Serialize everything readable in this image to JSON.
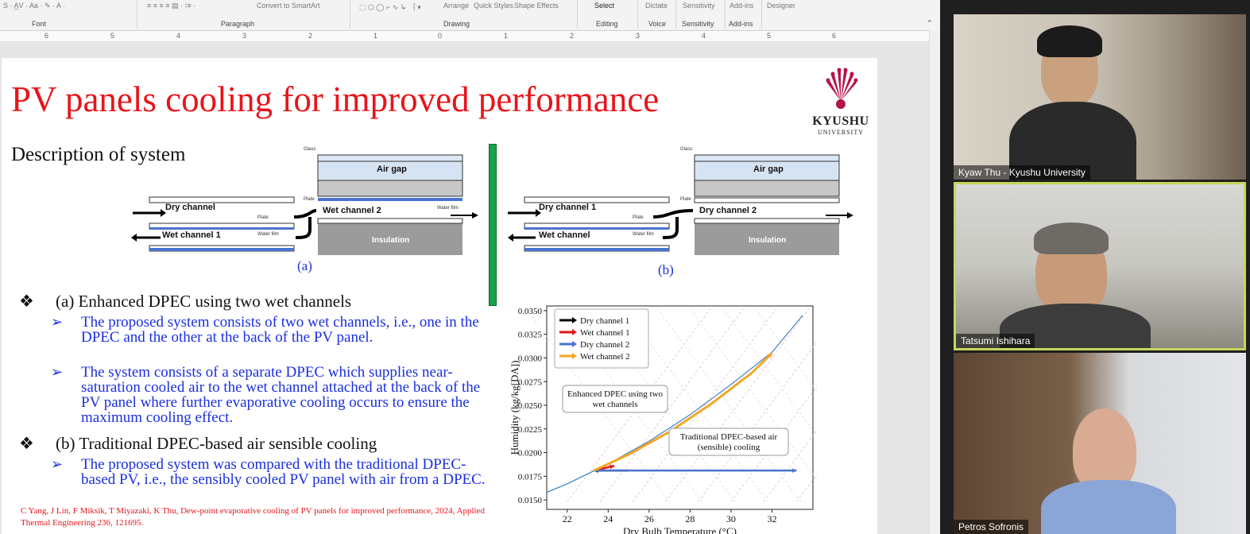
{
  "ribbon": {
    "groups": [
      "Font",
      "Paragraph",
      "Drawing",
      "Editing",
      "Voice",
      "Sensitivity",
      "Add-ins"
    ],
    "controls": [
      "Convert to SmartArt",
      "Arrange",
      "Quick Styles",
      "Shape Effects",
      "Select",
      "Dictate",
      "Sensitivity",
      "Add-ins",
      "Designer"
    ]
  },
  "ruler": [
    "6",
    "5",
    "4",
    "3",
    "2",
    "1",
    "0",
    "1",
    "2",
    "3",
    "4",
    "5",
    "6"
  ],
  "slide": {
    "title": "PV panels cooling for improved performance",
    "logo": {
      "name": "KYUSHU",
      "sub": "UNIVERSITY"
    },
    "section": "Description of system",
    "diagram_a": {
      "glass": "Glass",
      "air_gap": "Air gap",
      "plate": "Plate",
      "dry_channel": "Dry channel",
      "wet_channel_2": "Wet channel 2",
      "plate2": "Plate",
      "wet_channel_1": "Wet channel 1",
      "water_film": "Water film",
      "water_film2": "Water film",
      "insulation": "Insulation",
      "caption": "(a)"
    },
    "diagram_b": {
      "glass": "Glass",
      "air_gap": "Air gap",
      "plate": "Plate",
      "dry_channel_1": "Dry channel 1",
      "dry_channel_2": "Dry channel 2",
      "plate2": "Plate",
      "wet_channel": "Wet channel",
      "water_film": "Water film",
      "insulation": "Insulation",
      "caption": "(b)"
    },
    "bullet_a": "(a) Enhanced DPEC using two wet channels",
    "sub_a1": "The proposed system consists of two wet channels, i.e., one in the DPEC and the other at the back of the PV panel.",
    "sub_a2": "The system consists of a separate DPEC which supplies near-saturation cooled air to the wet channel attached at the back of the PV panel where further evaporative cooling occurs to ensure the maximum cooling effect.",
    "bullet_b": "(b) Traditional DPEC-based air sensible cooling",
    "sub_b1": "The proposed system was compared with the traditional DPEC-based PV, i.e., the sensibly cooled PV panel with air from a DPEC.",
    "reference": "C Yang, J Lin, F Miksik, T Miyazaki, K Thu, Dew-point evaporative cooling of PV panels for improved performance, 2024, Applied Thermal Engineering 236, 121695."
  },
  "chart_data": {
    "type": "line",
    "xlabel": "Dry Bulb Temperature (°C)",
    "ylabel": "Humidity (kg/kg[DA])",
    "xlim": [
      21,
      34
    ],
    "ylim": [
      0.014,
      0.0355
    ],
    "xticks": [
      22,
      24,
      26,
      28,
      30,
      32
    ],
    "yticks": [
      0.015,
      0.0175,
      0.02,
      0.0225,
      0.025,
      0.0275,
      0.03,
      0.0325,
      0.035
    ],
    "ytick_labels": [
      "0.0150",
      "0.0175",
      "0.0200",
      "0.0225",
      "0.0250",
      "0.0275",
      "0.0300",
      "0.0325",
      "0.0350"
    ],
    "legend_position": "top-left",
    "series": [
      {
        "name": "Dry channel 1",
        "color": "#000000",
        "x": [
          25,
          23.3
        ],
        "y": [
          0.0181,
          0.0181
        ]
      },
      {
        "name": "Wet channel 1",
        "color": "#e0141a",
        "x": [
          23.3,
          24.3
        ],
        "y": [
          0.0181,
          0.0186
        ]
      },
      {
        "name": "Dry channel 2",
        "color": "#4a73d0",
        "x": [
          23.3,
          33.2
        ],
        "y": [
          0.0181,
          0.0181
        ]
      },
      {
        "name": "Wet channel 2",
        "color": "#f5a623",
        "x": [
          23.3,
          25,
          27,
          29,
          31,
          32
        ],
        "y": [
          0.0181,
          0.0198,
          0.0222,
          0.0251,
          0.0284,
          0.0305
        ]
      }
    ],
    "saturation_curve": {
      "color": "#3a7fc1",
      "x": [
        21,
        22,
        24,
        26,
        28,
        30,
        32,
        33.5
      ],
      "y": [
        0.0158,
        0.0167,
        0.0188,
        0.0212,
        0.024,
        0.0272,
        0.0306,
        0.0345
      ]
    },
    "annotations": [
      "Enhanced DPEC using two wet channels",
      "Traditional DPEC-based air (sensible) cooling"
    ]
  },
  "participants": [
    {
      "name": "Kyaw Thu - Kyushu University"
    },
    {
      "name": "Tatsumi Ishihara"
    },
    {
      "name": "Petros Sofronis"
    }
  ]
}
